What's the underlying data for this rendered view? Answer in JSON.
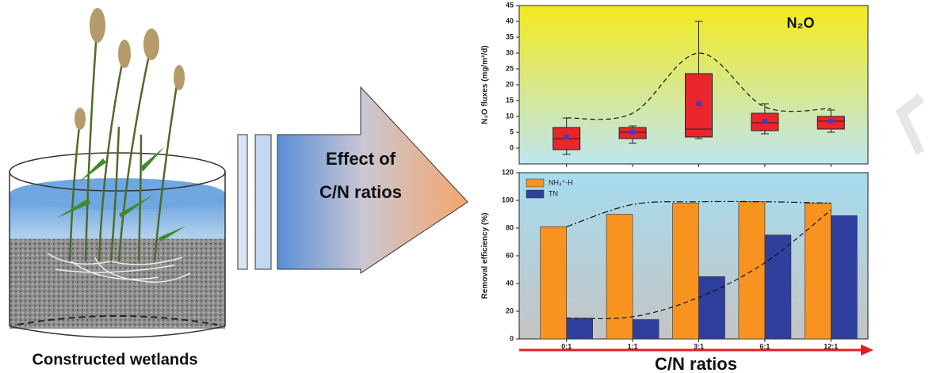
{
  "labels": {
    "left_caption": "Constructed wetlands",
    "arrow_text": [
      "Effect of",
      "C/N ratios"
    ],
    "x_axis_title": "C/N ratios"
  },
  "chart_data": [
    {
      "type": "box",
      "annotation": "N₂O",
      "ylabel": "N₂O fluxes (mg/m²/d)",
      "categories": [
        null,
        null,
        null,
        null,
        null
      ],
      "color": "#e8262b",
      "mean_color": "#3b3bd0",
      "boxes": [
        {
          "whislo": -2,
          "q1": -0.5,
          "med": 3,
          "q3": 6.5,
          "whishi": 9.5,
          "mean": 3.5
        },
        {
          "whislo": 1.5,
          "q1": 3,
          "med": 5,
          "q3": 6.5,
          "whishi": 7,
          "mean": 5
        },
        {
          "whislo": 3,
          "q1": 3.5,
          "med": 6,
          "q3": 23.5,
          "whishi": 40,
          "mean": 14
        },
        {
          "whislo": 4.5,
          "q1": 5.5,
          "med": 8,
          "q3": 11,
          "whishi": 14,
          "mean": 8.5
        },
        {
          "whislo": 5,
          "q1": 6,
          "med": 8.5,
          "q3": 10,
          "whishi": 12,
          "mean": 8.5
        }
      ],
      "trend_lines": [
        {
          "values": [
            9.5,
            11,
            30,
            13,
            12.5
          ],
          "dash": "dashed"
        }
      ],
      "ylim": [
        -5,
        45
      ],
      "yticks": [
        0,
        5,
        10,
        15,
        20,
        25,
        30,
        35,
        40,
        45
      ]
    },
    {
      "type": "bar",
      "ylabel": "Removal efficiency (%)",
      "categories": [
        "0:1",
        "1:1",
        "3:1",
        "6:1",
        "12:1"
      ],
      "series": [
        {
          "name": "NH₄⁺-H",
          "color": "#f7931e",
          "values": [
            81,
            90,
            98,
            99,
            98
          ]
        },
        {
          "name": "TN",
          "color": "#2e3f9e",
          "values": [
            15,
            14,
            45,
            75,
            89
          ]
        }
      ],
      "trend_lines": [
        {
          "values": [
            81,
            97,
            99,
            99,
            98
          ],
          "dash": "dashdot"
        },
        {
          "values": [
            15,
            16,
            30,
            55,
            93
          ],
          "dash": "dashed"
        }
      ],
      "legend": "upper left",
      "ylim": [
        0,
        120
      ],
      "yticks": [
        0,
        20,
        40,
        60,
        80,
        100,
        120
      ]
    }
  ]
}
